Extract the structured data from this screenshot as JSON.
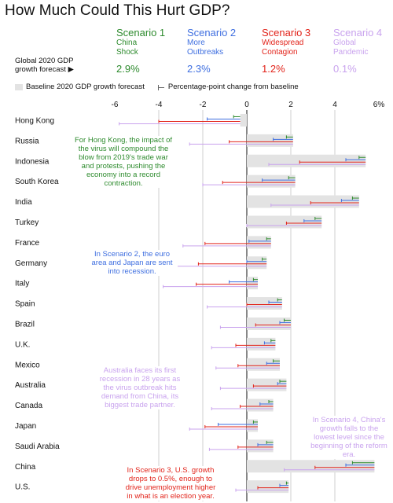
{
  "title": "How Much Could This Hurt GDP?",
  "global_label": "Global 2020 GDP growth forecast ▶",
  "legend": {
    "baseline": "Baseline 2020 GDP growth forecast",
    "change": "Percentage-point change from baseline"
  },
  "scenarios": [
    {
      "name": "Scenario 1",
      "desc": [
        "China",
        "Shock"
      ],
      "global": "2.9%",
      "color": "#2e8b2e"
    },
    {
      "name": "Scenario 2",
      "desc": [
        "More",
        "Outbreaks"
      ],
      "global": "2.3%",
      "color": "#3f6fe0"
    },
    {
      "name": "Scenario 3",
      "desc": [
        "Widespread",
        "Contagion"
      ],
      "global": "1.2%",
      "color": "#e2231a"
    },
    {
      "name": "Scenario 4",
      "desc": [
        "Global",
        "Pandemic"
      ],
      "global": "0.1%",
      "color": "#c9a3ee"
    }
  ],
  "colors": {
    "baseline_bar": "#e3e3e3",
    "axis": "#111111",
    "grid": "#cfcfcf"
  },
  "chart_data": {
    "type": "bar",
    "xlim": [
      -6,
      6
    ],
    "ticks": [
      "-6",
      "-4",
      "-2",
      "0",
      "2",
      "4",
      "6%"
    ],
    "tick_values": [
      -6,
      -4,
      -2,
      0,
      2,
      4,
      6
    ],
    "categories": [
      "Hong Kong",
      "Russia",
      "Indonesia",
      "South Korea",
      "India",
      "Turkey",
      "France",
      "Germany",
      "Italy",
      "Spain",
      "Brazil",
      "U.K.",
      "Mexico",
      "Australia",
      "Canada",
      "Japan",
      "Saudi Arabia",
      "China",
      "U.S."
    ],
    "baseline": [
      -0.3,
      2.1,
      5.4,
      2.2,
      5.1,
      3.4,
      1.1,
      0.9,
      0.5,
      1.6,
      2.0,
      1.3,
      1.5,
      1.8,
      1.2,
      0.5,
      1.2,
      5.8,
      1.9
    ],
    "series": [
      {
        "name": "Scenario 1",
        "values": [
          -0.3,
          -0.3,
          -0.3,
          -0.3,
          -0.3,
          -0.3,
          -0.2,
          -0.2,
          -0.2,
          -0.2,
          -0.3,
          -0.2,
          -0.3,
          -0.3,
          -0.2,
          -0.2,
          -0.3,
          -1.0,
          -0.1
        ]
      },
      {
        "name": "Scenario 2",
        "values": [
          -1.5,
          -0.9,
          -0.9,
          -1.5,
          -0.8,
          -0.8,
          -1.0,
          -0.9,
          -1.3,
          -0.6,
          -0.5,
          -0.5,
          -0.6,
          -0.4,
          -0.6,
          -1.8,
          -0.7,
          -1.3,
          -0.4
        ]
      },
      {
        "name": "Scenario 3",
        "values": [
          -3.7,
          -2.9,
          -3.0,
          -3.3,
          -2.2,
          -1.6,
          -3.0,
          -3.1,
          -2.8,
          -1.6,
          -1.6,
          -1.8,
          -1.9,
          -1.5,
          -1.5,
          -2.4,
          -1.6,
          -2.7,
          -1.4
        ]
      },
      {
        "name": "Scenario 4",
        "values": [
          -5.5,
          -4.7,
          -4.4,
          -4.2,
          -4.0,
          -3.4,
          -4.0,
          -4.1,
          -4.3,
          -3.4,
          -3.2,
          -2.9,
          -2.9,
          -3.0,
          -2.8,
          -3.1,
          -2.9,
          -4.1,
          -2.4
        ]
      }
    ],
    "notes": [
      {
        "text": "For Hong Kong, the impact of the virus will compound the blow from 2019's trade war and protests, pushing the economy into a record contraction.",
        "color": "#2e8b2e"
      },
      {
        "text": "In Scenario 2, the euro area and Japan are sent into recession.",
        "color": "#3f6fe0"
      },
      {
        "text": "Australia faces its first recession in 28 years as the virus outbreak hits demand from China, its biggest trade partner.",
        "color": "#c9a3ee"
      },
      {
        "text": "In Scenario 4, China's growth falls to the lowest level since the beginning of the reform era.",
        "color": "#c9a3ee"
      },
      {
        "text": "In Scenario 3, U.S. growth drops to 0.5%, enough to drive unemployment higher in what is an election year.",
        "color": "#e2231a"
      }
    ]
  }
}
